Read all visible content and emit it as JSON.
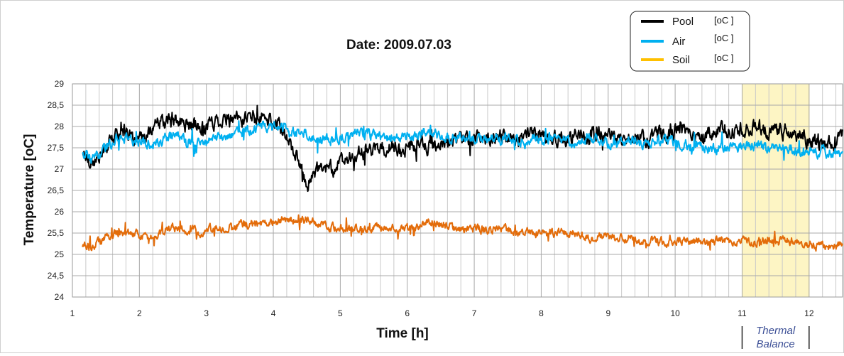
{
  "chart_data": {
    "type": "line",
    "title": "Date: 2009.07.03",
    "xlabel": "Time [h]",
    "ylabel": "Temperature  [oC]",
    "xlim": [
      1,
      12.5
    ],
    "ylim": [
      24,
      29
    ],
    "xticks": [
      "1",
      "2",
      "3",
      "4",
      "5",
      "6",
      "7",
      "8",
      "9",
      "10",
      "11",
      "12"
    ],
    "yticks": [
      "24",
      "24,5",
      "25",
      "25,5",
      "26",
      "26,5",
      "27",
      "27,5",
      "28",
      "28,5",
      "29"
    ],
    "grid": true,
    "legend_position": "top-right",
    "annotation": {
      "label_line1": "Thermal",
      "label_line2": "Balance",
      "x_range": [
        11,
        12
      ]
    },
    "series": [
      {
        "name": "Pool",
        "unit": "[oC ]",
        "color": "#000000",
        "x": [
          1.15,
          1.25,
          1.35,
          1.5,
          1.65,
          1.8,
          2.0,
          2.2,
          2.4,
          2.6,
          2.8,
          3.0,
          3.2,
          3.4,
          3.6,
          3.8,
          4.0,
          4.1,
          4.2,
          4.3,
          4.4,
          4.5,
          4.6,
          4.7,
          4.8,
          5.0,
          5.2,
          5.4,
          5.6,
          5.8,
          6.0,
          6.2,
          6.4,
          6.6,
          6.8,
          7.0,
          7.2,
          7.4,
          7.6,
          7.8,
          8.0,
          8.2,
          8.4,
          8.6,
          8.8,
          9.0,
          9.2,
          9.4,
          9.6,
          9.8,
          10.0,
          10.2,
          10.4,
          10.6,
          10.8,
          11.0,
          11.2,
          11.4,
          11.6,
          11.8,
          12.0,
          12.2,
          12.4,
          12.5
        ],
        "y": [
          27.4,
          27.2,
          27.2,
          27.5,
          27.8,
          27.9,
          27.6,
          28.0,
          28.1,
          28.1,
          28.0,
          28.0,
          28.2,
          28.1,
          28.2,
          28.2,
          28.1,
          28.0,
          27.7,
          27.5,
          27.0,
          26.6,
          26.9,
          27.0,
          27.0,
          27.1,
          27.3,
          27.4,
          27.5,
          27.5,
          27.5,
          27.6,
          27.5,
          27.6,
          27.7,
          27.8,
          27.7,
          27.8,
          27.7,
          27.8,
          27.8,
          27.7,
          27.7,
          27.8,
          27.8,
          27.8,
          27.7,
          27.8,
          27.7,
          27.8,
          27.9,
          27.9,
          27.8,
          27.9,
          27.9,
          27.9,
          28.0,
          27.9,
          27.9,
          27.8,
          27.7,
          27.6,
          27.6,
          27.9
        ]
      },
      {
        "name": "Air",
        "unit": "[oC ]",
        "color": "#00b0f0",
        "x": [
          1.15,
          1.3,
          1.5,
          1.7,
          1.9,
          2.1,
          2.3,
          2.5,
          2.7,
          2.9,
          3.1,
          3.3,
          3.5,
          3.7,
          3.9,
          4.1,
          4.3,
          4.5,
          4.7,
          4.9,
          5.1,
          5.3,
          5.5,
          5.7,
          5.9,
          6.1,
          6.3,
          6.5,
          6.7,
          6.9,
          7.1,
          7.3,
          7.5,
          7.7,
          7.9,
          8.1,
          8.3,
          8.5,
          8.7,
          8.9,
          9.1,
          9.3,
          9.5,
          9.7,
          9.9,
          10.1,
          10.3,
          10.5,
          10.7,
          10.9,
          11.1,
          11.3,
          11.5,
          11.7,
          11.9,
          12.1,
          12.3,
          12.5
        ],
        "y": [
          27.4,
          27.2,
          27.5,
          27.8,
          27.7,
          27.6,
          27.6,
          27.8,
          27.7,
          27.6,
          27.7,
          27.8,
          27.9,
          27.9,
          28.0,
          28.0,
          27.9,
          27.8,
          27.7,
          27.7,
          27.8,
          27.9,
          27.8,
          27.7,
          27.7,
          27.8,
          27.9,
          27.8,
          27.7,
          27.7,
          27.7,
          27.7,
          27.7,
          27.6,
          27.7,
          27.7,
          27.7,
          27.6,
          27.7,
          27.6,
          27.6,
          27.6,
          27.6,
          27.6,
          27.7,
          27.6,
          27.5,
          27.5,
          27.5,
          27.5,
          27.6,
          27.5,
          27.5,
          27.5,
          27.4,
          27.4,
          27.4,
          27.4
        ]
      },
      {
        "name": "Soil",
        "unit": "[oC ]",
        "color": "#ffc000",
        "plot_color": "#e36c0a",
        "x": [
          1.15,
          1.3,
          1.5,
          1.7,
          1.9,
          2.1,
          2.3,
          2.5,
          2.7,
          2.9,
          3.1,
          3.3,
          3.5,
          3.7,
          3.9,
          4.1,
          4.3,
          4.5,
          4.7,
          4.9,
          5.1,
          5.3,
          5.5,
          5.7,
          5.9,
          6.1,
          6.3,
          6.5,
          6.7,
          6.9,
          7.1,
          7.3,
          7.5,
          7.7,
          7.9,
          8.1,
          8.3,
          8.5,
          8.7,
          8.9,
          9.1,
          9.3,
          9.5,
          9.7,
          9.9,
          10.1,
          10.3,
          10.5,
          10.7,
          10.9,
          11.1,
          11.3,
          11.5,
          11.7,
          11.9,
          12.1,
          12.3,
          12.5
        ],
        "y": [
          25.2,
          25.2,
          25.4,
          25.5,
          25.5,
          25.4,
          25.5,
          25.6,
          25.6,
          25.5,
          25.6,
          25.6,
          25.7,
          25.7,
          25.7,
          25.8,
          25.8,
          25.8,
          25.7,
          25.6,
          25.6,
          25.6,
          25.6,
          25.7,
          25.6,
          25.6,
          25.8,
          25.7,
          25.6,
          25.6,
          25.6,
          25.6,
          25.6,
          25.5,
          25.5,
          25.5,
          25.5,
          25.5,
          25.4,
          25.4,
          25.4,
          25.4,
          25.3,
          25.3,
          25.3,
          25.3,
          25.3,
          25.3,
          25.3,
          25.3,
          25.3,
          25.3,
          25.3,
          25.3,
          25.3,
          25.2,
          25.2,
          25.2
        ]
      }
    ]
  }
}
